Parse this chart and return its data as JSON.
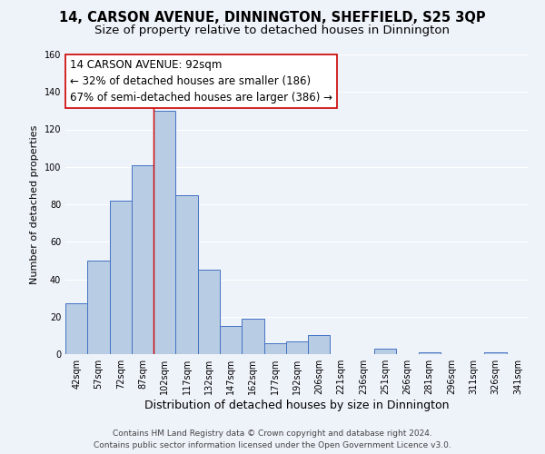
{
  "title": "14, CARSON AVENUE, DINNINGTON, SHEFFIELD, S25 3QP",
  "subtitle": "Size of property relative to detached houses in Dinnington",
  "xlabel": "Distribution of detached houses by size in Dinnington",
  "ylabel": "Number of detached properties",
  "bar_labels": [
    "42sqm",
    "57sqm",
    "72sqm",
    "87sqm",
    "102sqm",
    "117sqm",
    "132sqm",
    "147sqm",
    "162sqm",
    "177sqm",
    "192sqm",
    "206sqm",
    "221sqm",
    "236sqm",
    "251sqm",
    "266sqm",
    "281sqm",
    "296sqm",
    "311sqm",
    "326sqm",
    "341sqm"
  ],
  "bar_values": [
    27,
    50,
    82,
    101,
    130,
    85,
    45,
    15,
    19,
    6,
    7,
    10,
    0,
    0,
    3,
    0,
    1,
    0,
    0,
    1,
    0
  ],
  "bar_color": "#b8cce4",
  "bar_edge_color": "#4472c4",
  "ylim": [
    0,
    160
  ],
  "yticks": [
    0,
    20,
    40,
    60,
    80,
    100,
    120,
    140,
    160
  ],
  "annotation_text_line1": "14 CARSON AVENUE: 92sqm",
  "annotation_text_line2": "← 32% of detached houses are smaller (186)",
  "annotation_text_line3": "67% of semi-detached houses are larger (386) →",
  "marker_x_label": "102sqm",
  "marker_color": "#cc0000",
  "footer_line1": "Contains HM Land Registry data © Crown copyright and database right 2024.",
  "footer_line2": "Contains public sector information licensed under the Open Government Licence v3.0.",
  "background_color": "#eef2f9",
  "grid_color": "#ffffff",
  "title_fontsize": 10.5,
  "subtitle_fontsize": 9.5,
  "xlabel_fontsize": 9,
  "ylabel_fontsize": 8,
  "tick_fontsize": 7,
  "annotation_fontsize": 8.5,
  "footer_fontsize": 6.5
}
